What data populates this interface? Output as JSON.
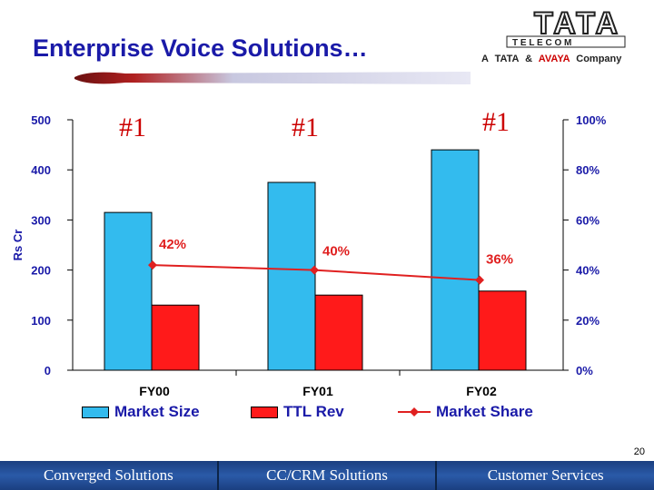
{
  "slide": {
    "title": "Enterprise Voice Solutions…",
    "page_number": "20"
  },
  "logo": {
    "brand_text": "TATA",
    "sub_text": "T E L E C O M",
    "tagline_prefix": "A",
    "tagline_tata": "TATA",
    "tagline_amp": "&",
    "tagline_avaya": "AVAYA",
    "tagline_suffix": "Company"
  },
  "chart_data": {
    "type": "bar",
    "categories": [
      "FY00",
      "FY01",
      "FY02"
    ],
    "series": [
      {
        "name": "Market Size",
        "type": "bar",
        "axis": "left",
        "values": [
          315,
          375,
          440
        ],
        "color": "#33bbee"
      },
      {
        "name": "TTL Rev",
        "type": "bar",
        "axis": "left",
        "values": [
          130,
          150,
          158
        ],
        "color": "#ff1a1a"
      },
      {
        "name": "Market Share",
        "type": "line",
        "axis": "right",
        "values": [
          42,
          40,
          36
        ],
        "labels": [
          "42%",
          "40%",
          "36%"
        ],
        "color": "#e02020"
      }
    ],
    "ylabel": "Rs Cr",
    "ylim": [
      0,
      500
    ],
    "yticks": [
      "0",
      "100",
      "200",
      "300",
      "400",
      "500"
    ],
    "y2lim": [
      0,
      100
    ],
    "y2ticks": [
      "0%",
      "20%",
      "40%",
      "60%",
      "80%",
      "100%"
    ],
    "annotations": [
      "#1",
      "#1",
      "#1"
    ],
    "grid": false,
    "legend_position": "bottom"
  },
  "footer": {
    "tabs": [
      "Converged Solutions",
      "CC/CRM Solutions",
      "Customer Services"
    ]
  },
  "colors": {
    "title": "#1a1aa8",
    "axis_text": "#1a1aa8",
    "annotation": "#cc0000",
    "footer_bg": "#1e4a90"
  }
}
